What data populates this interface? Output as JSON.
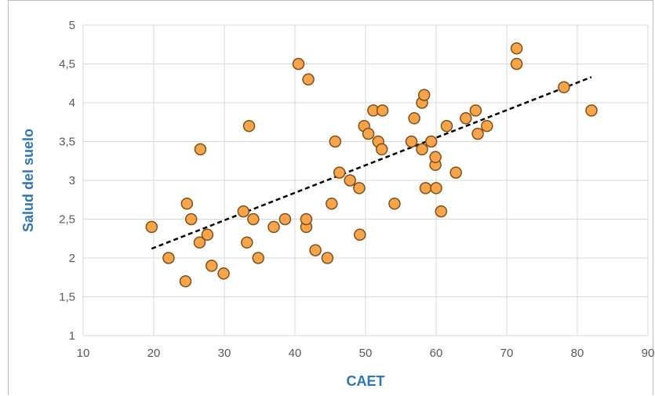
{
  "chart_data": {
    "type": "scatter",
    "title": "",
    "xlabel": "CAET",
    "ylabel": "Salud del suelo",
    "xlim": [
      10,
      90
    ],
    "ylim": [
      1,
      5
    ],
    "x_ticks": [
      "10",
      "20",
      "30",
      "40",
      "50",
      "60",
      "70",
      "80",
      "90"
    ],
    "y_ticks": [
      "1",
      "1,5",
      "2",
      "2,5",
      "3",
      "3,5",
      "4",
      "4,5",
      "5"
    ],
    "grid": true,
    "marker_color": "#f7a54a",
    "marker_edge_color": "#7f4f1a",
    "trendline": {
      "type": "linear",
      "style": "dashed",
      "color": "#000000",
      "x_range": [
        19.7,
        82
      ],
      "y_range": [
        2.12,
        4.33
      ]
    },
    "series": [
      {
        "points": [
          [
            19.7,
            2.4
          ],
          [
            22.1,
            2.0
          ],
          [
            24.5,
            1.7
          ],
          [
            24.7,
            2.7
          ],
          [
            25.3,
            2.5
          ],
          [
            26.5,
            2.2
          ],
          [
            26.6,
            3.4
          ],
          [
            27.6,
            2.3
          ],
          [
            28.2,
            1.9
          ],
          [
            29.9,
            1.8
          ],
          [
            32.7,
            2.6
          ],
          [
            33.2,
            2.2
          ],
          [
            33.5,
            3.7
          ],
          [
            34.1,
            2.5
          ],
          [
            34.8,
            2.0
          ],
          [
            37.0,
            2.4
          ],
          [
            38.6,
            2.5
          ],
          [
            40.5,
            4.5
          ],
          [
            41.6,
            2.4
          ],
          [
            41.6,
            2.5
          ],
          [
            41.9,
            4.3
          ],
          [
            42.9,
            2.1
          ],
          [
            44.6,
            2.0
          ],
          [
            45.2,
            2.7
          ],
          [
            45.7,
            3.5
          ],
          [
            46.3,
            3.1
          ],
          [
            47.8,
            3.0
          ],
          [
            49.1,
            2.9
          ],
          [
            49.2,
            2.3
          ],
          [
            49.8,
            3.7
          ],
          [
            50.4,
            3.6
          ],
          [
            51.1,
            3.9
          ],
          [
            51.8,
            3.5
          ],
          [
            52.3,
            3.4
          ],
          [
            52.4,
            3.9
          ],
          [
            54.1,
            2.7
          ],
          [
            56.5,
            3.5
          ],
          [
            56.9,
            3.8
          ],
          [
            58.0,
            3.4
          ],
          [
            58.0,
            4.0
          ],
          [
            58.3,
            4.1
          ],
          [
            58.5,
            2.9
          ],
          [
            59.3,
            3.5
          ],
          [
            59.9,
            3.2
          ],
          [
            59.9,
            3.3
          ],
          [
            60.0,
            2.9
          ],
          [
            60.7,
            2.6
          ],
          [
            61.5,
            3.7
          ],
          [
            62.8,
            3.1
          ],
          [
            64.2,
            3.8
          ],
          [
            65.6,
            3.9
          ],
          [
            65.9,
            3.6
          ],
          [
            67.2,
            3.7
          ],
          [
            71.4,
            4.7
          ],
          [
            71.4,
            4.5
          ],
          [
            78.1,
            4.2
          ],
          [
            82.0,
            3.9
          ]
        ]
      }
    ]
  }
}
